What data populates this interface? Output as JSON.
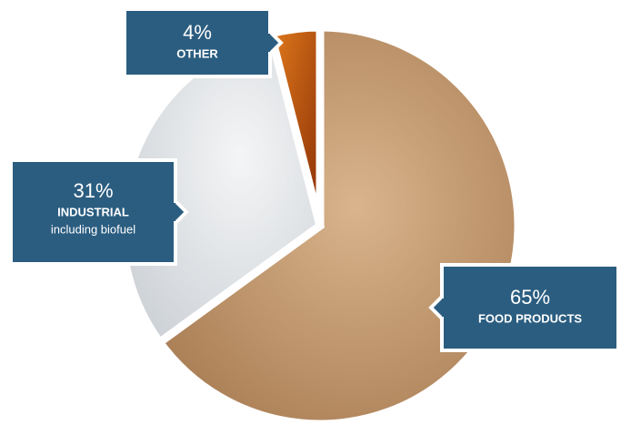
{
  "chart_data": {
    "type": "pie",
    "categories": [
      "FOOD PRODUCTS",
      "INDUSTRIAL",
      "OTHER"
    ],
    "values": [
      65,
      31,
      4
    ],
    "value_labels": [
      "65%",
      "31%",
      "4%"
    ],
    "annotations": [
      "including biofuel"
    ],
    "colors": [
      "#c9a27a",
      "#e3e6e9",
      "#b8480e"
    ]
  }
}
